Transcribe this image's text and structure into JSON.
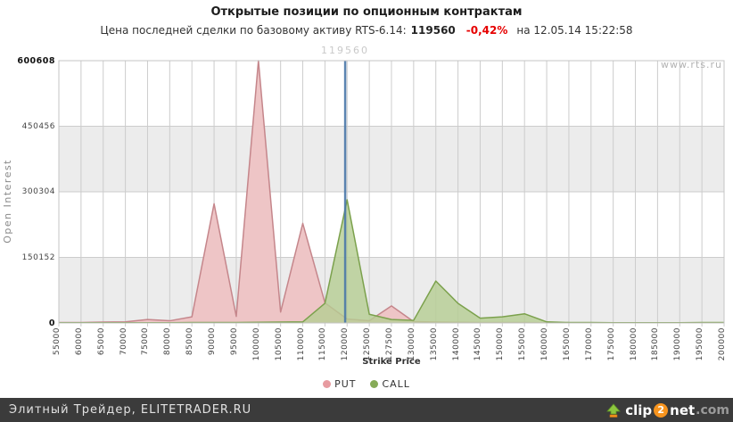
{
  "header": {
    "subtitle_prefix": "Цена последней сделки по базовому активу RTS-6.14:",
    "price": "119560",
    "change": "-0,42%",
    "datetime": "на 12.05.14 15:22:58"
  },
  "watermark": "www.rts.ru",
  "footer": {
    "site_label": "Элитный Трейдер, ELITETRADER.RU",
    "logo": {
      "clip": "clip",
      "two": "2",
      "net": "net",
      "com": ".com"
    }
  },
  "chart_data": {
    "type": "area",
    "title": "Открытые позиции по опционным контрактам",
    "xlabel": "Strike Price",
    "ylabel": "Open Interest",
    "legend_position": "bottom",
    "grid": true,
    "categories": [
      55000,
      60000,
      65000,
      70000,
      75000,
      80000,
      85000,
      90000,
      95000,
      100000,
      105000,
      110000,
      115000,
      120000,
      125000,
      127500,
      130000,
      135000,
      140000,
      145000,
      150000,
      155000,
      160000,
      165000,
      170000,
      175000,
      180000,
      185000,
      190000,
      195000,
      200000
    ],
    "series": [
      {
        "name": "PUT",
        "values": [
          1000,
          1000,
          2000,
          2500,
          8000,
          5000,
          14000,
          273000,
          15000,
          600608,
          25000,
          228000,
          46000,
          9000,
          5000,
          39000,
          3000,
          2000,
          1500,
          1000,
          1000,
          1000,
          500,
          500,
          500,
          500,
          500,
          500,
          500,
          500,
          500
        ],
        "fill": "#eec5c6",
        "fill_opacity": 1,
        "stroke": "#c5868b",
        "dot": "#e79ba0"
      },
      {
        "name": "CALL",
        "values": [
          500,
          500,
          500,
          500,
          500,
          500,
          1000,
          1000,
          1000,
          1500,
          2000,
          2500,
          45000,
          282000,
          20000,
          8000,
          6000,
          96000,
          45000,
          11000,
          14000,
          21000,
          2500,
          1000,
          1000,
          500,
          500,
          500,
          500,
          1000,
          1000
        ],
        "fill": "#b5cd92",
        "fill_opacity": 0.8,
        "stroke": "#7ba14c",
        "dot": "#86ab58"
      }
    ],
    "yticks": [
      0,
      150152,
      300304,
      450456,
      600608
    ],
    "ylim": [
      0,
      600608
    ],
    "price_line": {
      "value": 119560,
      "label": "119560",
      "color": "#4a78a8"
    },
    "colors": {
      "band": "#ececec",
      "grid": "#cccccc",
      "border": "#c4c4c4"
    }
  }
}
